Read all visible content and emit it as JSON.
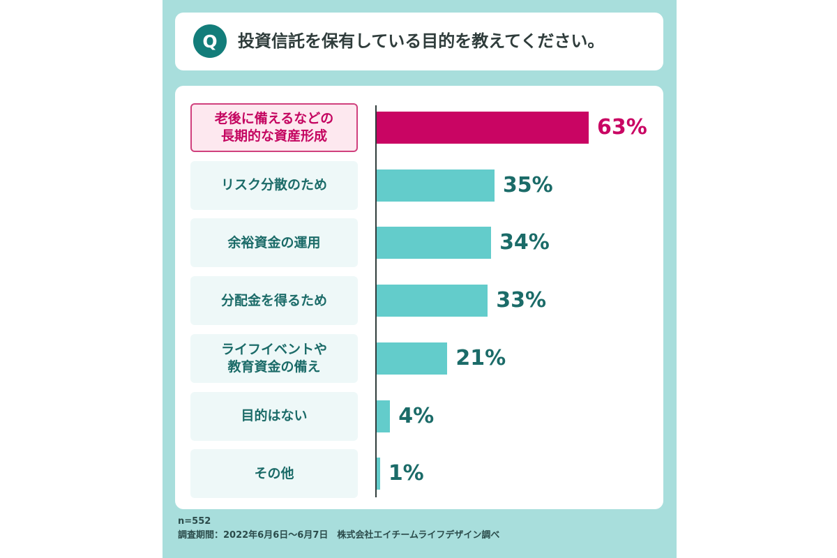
{
  "question": {
    "badge": "Q",
    "text": "投資信託を保有している目的を教えてください。"
  },
  "chart_data": {
    "type": "bar",
    "orientation": "horizontal",
    "categories": [
      "老後に備えるなどの\n長期的な資産形成",
      "リスク分散のため",
      "余裕資金の運用",
      "分配金を得るため",
      "ライフイベントや\n教育資金の備え",
      "目的はない",
      "その他"
    ],
    "values": [
      63,
      35,
      34,
      33,
      21,
      4,
      1
    ],
    "value_labels": [
      "63%",
      "35%",
      "34%",
      "33%",
      "21%",
      "4%",
      "1%"
    ],
    "unit": "%",
    "highlight_index": 0,
    "xlim": [
      0,
      63
    ],
    "colors": {
      "bar": "#63cccb",
      "highlight": "#c90563",
      "label_text": "#1b6b68"
    },
    "grid": false
  },
  "footer": {
    "sample": "n=552",
    "source": "調査期間：2022年6月6日～6月7日　株式会社エイチームライフデザイン調べ"
  }
}
